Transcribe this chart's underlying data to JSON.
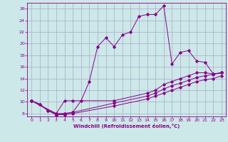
{
  "xlabel": "Windchill (Refroidissement éolien,°C)",
  "bg_color": "#cce8e8",
  "grid_color": "#aaaacc",
  "line_color": "#880088",
  "xlim": [
    -0.5,
    23.5
  ],
  "ylim": [
    7.5,
    27.0
  ],
  "yticks": [
    8,
    10,
    12,
    14,
    16,
    18,
    20,
    22,
    24,
    26
  ],
  "xticks": [
    0,
    1,
    2,
    3,
    4,
    5,
    6,
    7,
    8,
    9,
    10,
    11,
    12,
    13,
    14,
    15,
    16,
    17,
    18,
    19,
    20,
    21,
    22,
    23
  ],
  "line1_x": [
    0,
    1,
    2,
    3,
    4,
    5,
    6,
    7,
    8,
    9,
    10,
    11,
    12,
    13,
    14,
    15,
    16,
    17,
    18,
    19,
    20,
    21,
    22,
    23
  ],
  "line1_y": [
    10.2,
    9.6,
    8.5,
    7.8,
    8.0,
    8.2,
    10.2,
    13.5,
    19.5,
    21.0,
    19.5,
    21.5,
    22.0,
    24.7,
    25.0,
    25.0,
    26.5,
    16.5,
    18.5,
    18.8,
    17.0,
    16.8,
    14.8,
    15.0
  ],
  "line2_x": [
    0,
    1,
    2,
    3,
    4,
    5,
    10,
    14,
    15,
    16,
    17,
    18,
    19,
    20,
    21,
    22,
    23
  ],
  "line2_y": [
    10.2,
    9.6,
    8.5,
    8.0,
    10.2,
    10.2,
    10.2,
    11.5,
    12.0,
    13.0,
    13.5,
    14.0,
    14.5,
    15.0,
    15.0,
    14.8,
    15.0
  ],
  "line3_x": [
    0,
    3,
    4,
    5,
    10,
    14,
    15,
    16,
    17,
    18,
    19,
    20,
    21,
    22,
    23
  ],
  "line3_y": [
    10.2,
    8.0,
    8.0,
    8.2,
    9.8,
    11.0,
    11.5,
    12.2,
    12.8,
    13.2,
    13.7,
    14.2,
    14.5,
    14.7,
    15.0
  ],
  "line4_x": [
    0,
    3,
    4,
    5,
    10,
    14,
    15,
    16,
    17,
    18,
    19,
    20,
    21,
    22,
    23
  ],
  "line4_y": [
    10.2,
    7.8,
    7.8,
    8.0,
    9.3,
    10.5,
    11.0,
    11.5,
    12.0,
    12.5,
    13.0,
    13.5,
    13.8,
    14.0,
    14.5
  ]
}
